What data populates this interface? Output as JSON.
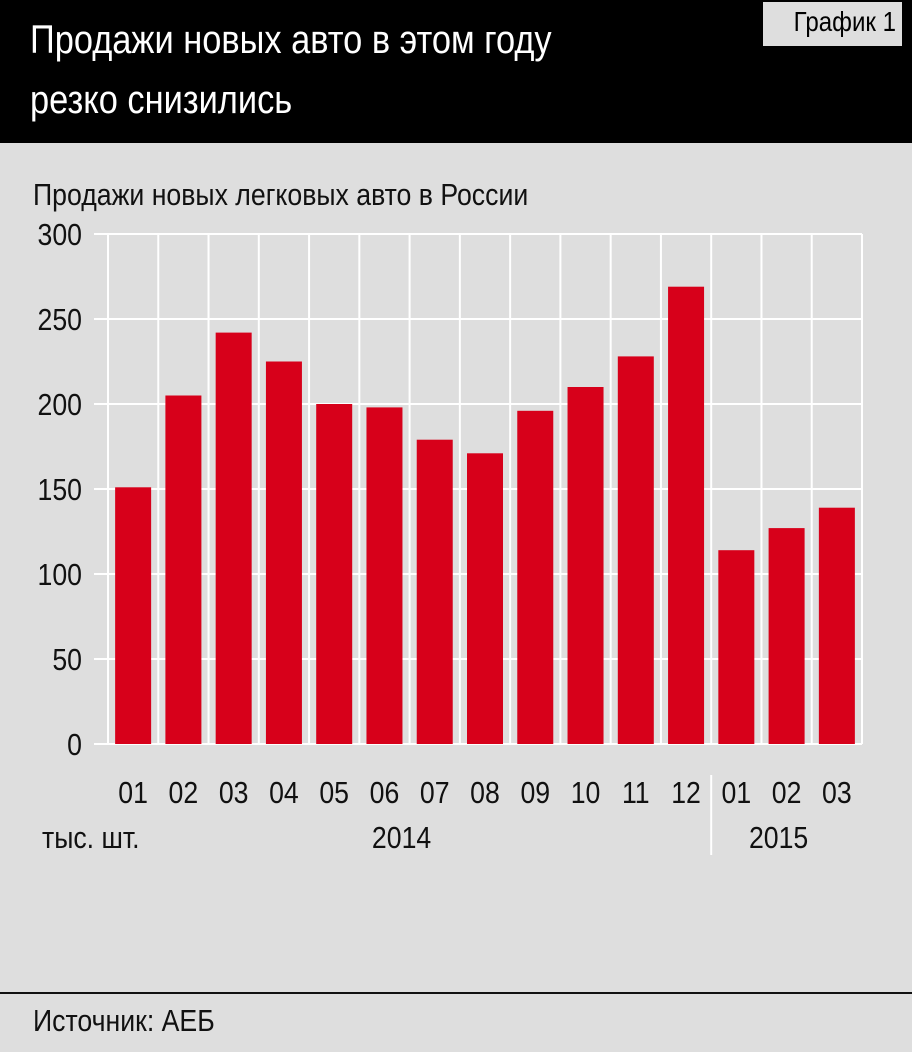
{
  "header": {
    "title_line1": "Продажи новых авто в этом году",
    "title_line2": "резко снизились",
    "chart_number": "График 1"
  },
  "colors": {
    "bar": "#d7001a",
    "header_bg": "#000000",
    "background": "#dedede",
    "grid": "#ffffff"
  },
  "chart_data": {
    "type": "bar",
    "title": "Продажи новых легковых авто в России",
    "unit_label": "тыс. шт.",
    "categories": [
      "01",
      "02",
      "03",
      "04",
      "05",
      "06",
      "07",
      "08",
      "09",
      "10",
      "11",
      "12",
      "01",
      "02",
      "03"
    ],
    "year_groups": [
      {
        "label": "2014",
        "count": 12
      },
      {
        "label": "2015",
        "count": 3
      }
    ],
    "values": [
      151,
      205,
      242,
      225,
      200,
      198,
      179,
      171,
      196,
      210,
      228,
      269,
      114,
      127,
      139
    ],
    "ylim": [
      0,
      300
    ],
    "yticks": [
      0,
      50,
      100,
      150,
      200,
      250,
      300
    ],
    "grid": true,
    "legend": "none"
  },
  "footer": {
    "source": "Источник: АЕБ"
  }
}
